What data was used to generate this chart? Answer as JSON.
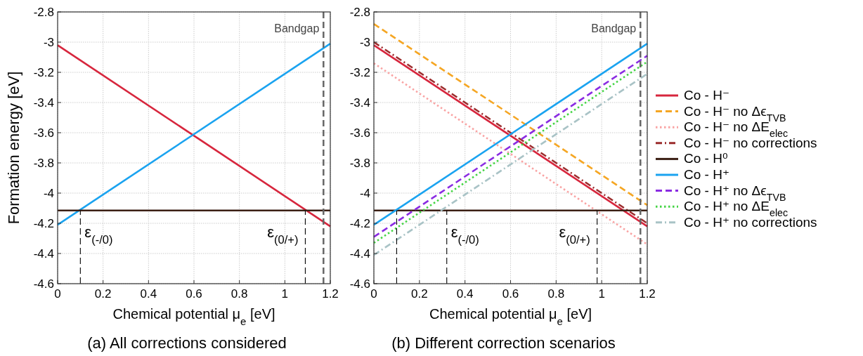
{
  "chart_data": [
    {
      "type": "line",
      "title": "(a) All corrections considered",
      "xlabel": "Chemical potential μ$_{e}$ [eV]",
      "ylabel": "Formation energy [eV]",
      "xlim": [
        0,
        1.2
      ],
      "ylim": [
        -4.6,
        -2.8
      ],
      "xticks": [
        0,
        0.2,
        0.4,
        0.6,
        0.8,
        1,
        1.2
      ],
      "yticks": [
        -4.6,
        -4.4,
        -4.2,
        -4,
        -3.8,
        -3.6,
        -3.4,
        -3.2,
        -3,
        -2.8
      ],
      "grid": true,
      "legend": false,
      "series": [
        {
          "color": "#d7263d",
          "x": [
            0,
            1.2
          ],
          "values": [
            -3.02,
            -4.22
          ],
          "line_style": "solid"
        },
        {
          "color": "#1aa3f0",
          "x": [
            0,
            1.2
          ],
          "values": [
            -4.21,
            -3.01
          ],
          "line_style": "solid"
        },
        {
          "color": "#3b1f14",
          "x": [
            0,
            1.2
          ],
          "values": [
            -4.115,
            -4.115
          ],
          "line_style": "solid"
        },
        {
          "color": "#000000",
          "x": [
            0.1,
            0.1
          ],
          "values": [
            -4.6,
            -4.115
          ],
          "line_style": "dashed"
        },
        {
          "color": "#000000",
          "x": [
            1.09,
            1.09
          ],
          "values": [
            -4.6,
            -4.115
          ],
          "line_style": "dashed"
        }
      ],
      "ref_lines": [
        {
          "axis": "x",
          "value": 1.17,
          "label": "Bandgap",
          "color": "#666666",
          "line_style": "dashed"
        }
      ],
      "annotations": [
        {
          "text": "ε$_{(-/0)}$",
          "x": 0.1,
          "y": -4.115
        },
        {
          "text": "ε$_{(0/+)}$",
          "x": 1.09,
          "y": -4.115
        }
      ]
    },
    {
      "type": "line",
      "title": "(b) Different correction scenarios",
      "xlabel": "Chemical potential μ$_{e}$ [eV]",
      "xlim": [
        0,
        1.2
      ],
      "ylim": [
        -4.6,
        -2.8
      ],
      "xticks": [
        0,
        0.2,
        0.4,
        0.6,
        0.8,
        1,
        1.2
      ],
      "yticks": [
        -4.6,
        -4.4,
        -4.2,
        -4,
        -3.8,
        -3.6,
        -3.4,
        -3.2,
        -3,
        -2.8
      ],
      "grid": true,
      "legend": "right",
      "series": [
        {
          "name": "Co - H⁻",
          "color": "#d7263d",
          "x": [
            0,
            1.2
          ],
          "values": [
            -3.02,
            -4.22
          ],
          "line_style": "solid"
        },
        {
          "name": "Co - H⁻ no Δϵ$_{TVB}$",
          "color": "#f5a623",
          "x": [
            0,
            1.2
          ],
          "values": [
            -2.88,
            -4.08
          ],
          "line_style": "dashed"
        },
        {
          "name": "Co - H⁻ no ΔE$_{elec}$",
          "color": "#f9a3a3",
          "x": [
            0,
            1.2
          ],
          "values": [
            -3.14,
            -4.34
          ],
          "line_style": "dotted"
        },
        {
          "name": "Co - H⁻ no corrections",
          "color": "#9b2c2c",
          "x": [
            0,
            1.2
          ],
          "values": [
            -3.0,
            -4.2
          ],
          "line_style": "dashdot"
        },
        {
          "name": "Co - H⁰",
          "color": "#3b1f14",
          "x": [
            0,
            1.2
          ],
          "values": [
            -4.115,
            -4.115
          ],
          "line_style": "solid"
        },
        {
          "name": "Co - H⁺",
          "color": "#1aa3f0",
          "x": [
            0,
            1.2
          ],
          "values": [
            -4.21,
            -3.01
          ],
          "line_style": "solid"
        },
        {
          "name": "Co - H⁺ no Δϵ$_{TVB}$",
          "color": "#8a2be2",
          "x": [
            0,
            1.2
          ],
          "values": [
            -4.29,
            -3.09
          ],
          "line_style": "dashed"
        },
        {
          "name": "Co - H⁺ no ΔE$_{elec}$",
          "color": "#44d444",
          "x": [
            0,
            1.2
          ],
          "values": [
            -4.33,
            -3.13
          ],
          "line_style": "dotted"
        },
        {
          "name": "Co - H⁺ no corrections",
          "color": "#a9c3c6",
          "x": [
            0,
            1.2
          ],
          "values": [
            -4.41,
            -3.21
          ],
          "line_style": "dashdot"
        },
        {
          "color": "#000000",
          "x": [
            0.1,
            0.1
          ],
          "values": [
            -4.6,
            -4.115
          ],
          "line_style": "dashed"
        },
        {
          "color": "#000000",
          "x": [
            0.32,
            0.32
          ],
          "values": [
            -4.6,
            -4.115
          ],
          "line_style": "dashed"
        },
        {
          "color": "#000000",
          "x": [
            0.98,
            0.98
          ],
          "values": [
            -4.6,
            -4.115
          ],
          "line_style": "dashed"
        }
      ],
      "ref_lines": [
        {
          "axis": "x",
          "value": 1.17,
          "label": "Bandgap",
          "color": "#666666",
          "line_style": "dashed"
        }
      ],
      "annotations": [
        {
          "text": "ε$_{(-/0)}$",
          "x": 0.32,
          "y": -4.115
        },
        {
          "text": "ε$_{(0/+)}$",
          "x": 0.98,
          "y": -4.115
        }
      ]
    }
  ]
}
